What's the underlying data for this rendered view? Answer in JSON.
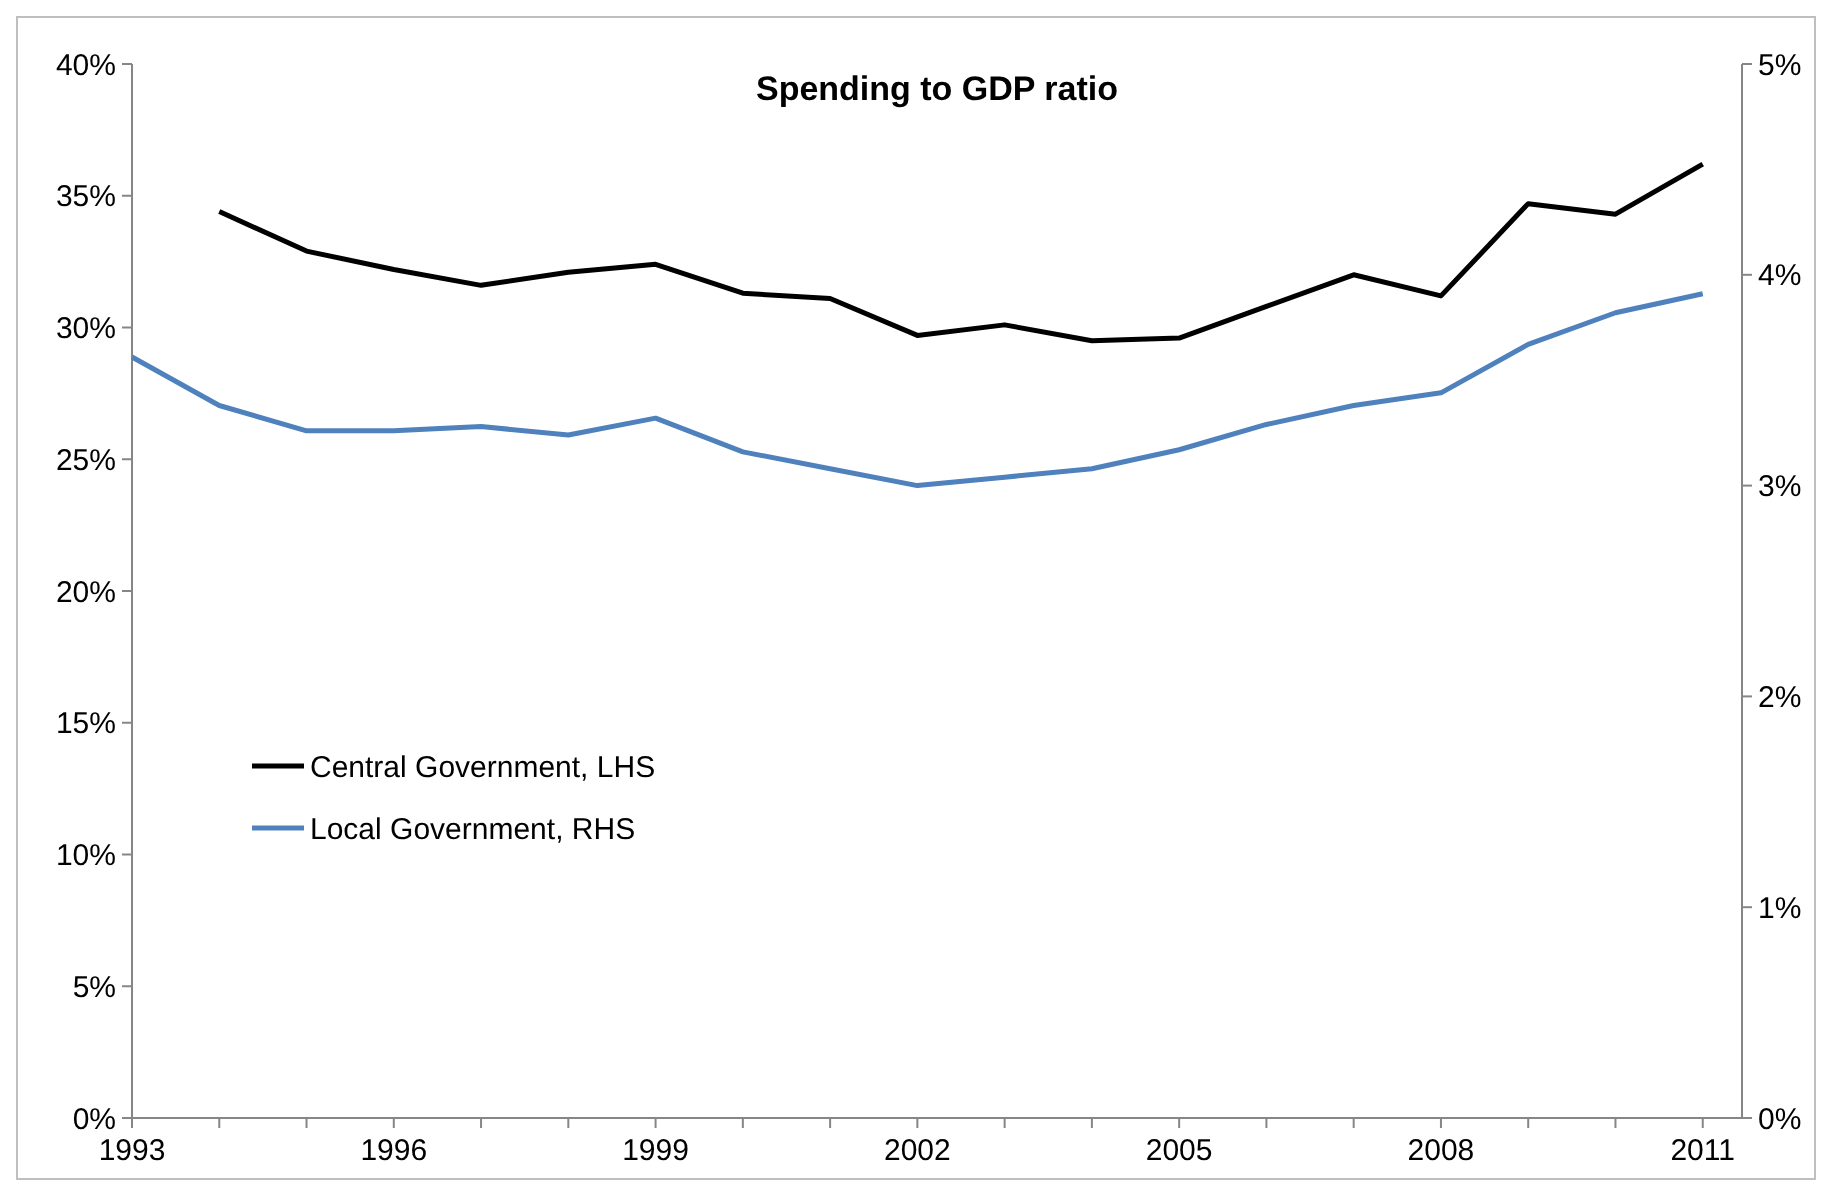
{
  "chart_data": {
    "type": "line",
    "title": "Spending to GDP ratio",
    "x": [
      1993,
      1994,
      1995,
      1996,
      1997,
      1998,
      1999,
      2000,
      2001,
      2002,
      2003,
      2004,
      2005,
      2006,
      2007,
      2008,
      2009,
      2010,
      2011
    ],
    "series": [
      {
        "name": "Central Government, LHS",
        "color": "#000000",
        "values": [
          null,
          34.4,
          32.9,
          32.2,
          31.6,
          32.1,
          32.4,
          31.3,
          31.1,
          29.7,
          30.1,
          29.5,
          29.6,
          30.8,
          32.0,
          31.2,
          34.7,
          34.3,
          36.2
        ]
      },
      {
        "name": "Local Government, RHS",
        "color": "#4f81bd",
        "axis": "y2",
        "values": [
          3.61,
          3.38,
          3.26,
          3.26,
          3.28,
          3.24,
          3.32,
          3.16,
          3.08,
          3.0,
          3.04,
          3.08,
          3.17,
          3.29,
          3.38,
          3.44,
          3.67,
          3.82,
          3.91
        ]
      }
    ],
    "xlim": [
      1993,
      2011.45
    ],
    "xticks": [
      1993,
      {
        "value": 1994,
        "label": null
      },
      {
        "value": 1995,
        "label": null
      },
      1996,
      {
        "value": 1997,
        "label": null
      },
      {
        "value": 1998,
        "label": null
      },
      1999,
      {
        "value": 2000,
        "label": null
      },
      {
        "value": 2001,
        "label": null
      },
      2002,
      {
        "value": 2003,
        "label": null
      },
      {
        "value": 2004,
        "label": null
      },
      2005,
      {
        "value": 2006,
        "label": null
      },
      {
        "value": 2007,
        "label": null
      },
      2008,
      {
        "value": 2009,
        "label": null
      },
      {
        "value": 2010,
        "label": null
      },
      2011
    ],
    "ylim": [
      0,
      40
    ],
    "yticks": [
      {
        "value": 0,
        "label": "0%"
      },
      {
        "value": 5,
        "label": "5%"
      },
      {
        "value": 10,
        "label": "10%"
      },
      {
        "value": 15,
        "label": "15%"
      },
      {
        "value": 20,
        "label": "20%"
      },
      {
        "value": 25,
        "label": "25%"
      },
      {
        "value": 30,
        "label": "30%"
      },
      {
        "value": 35,
        "label": "35%"
      },
      {
        "value": 40,
        "label": "40%"
      }
    ],
    "y2lim": [
      0,
      5
    ],
    "y2ticks": [
      {
        "value": 0,
        "label": "0%"
      },
      {
        "value": 1,
        "label": "1%"
      },
      {
        "value": 2,
        "label": "2%"
      },
      {
        "value": 3,
        "label": "3%"
      },
      {
        "value": 4,
        "label": "4%"
      },
      {
        "value": 5,
        "label": "5%"
      }
    ],
    "legend": "bottom left",
    "grid": false,
    "marker": "none",
    "line_style": "solid"
  }
}
